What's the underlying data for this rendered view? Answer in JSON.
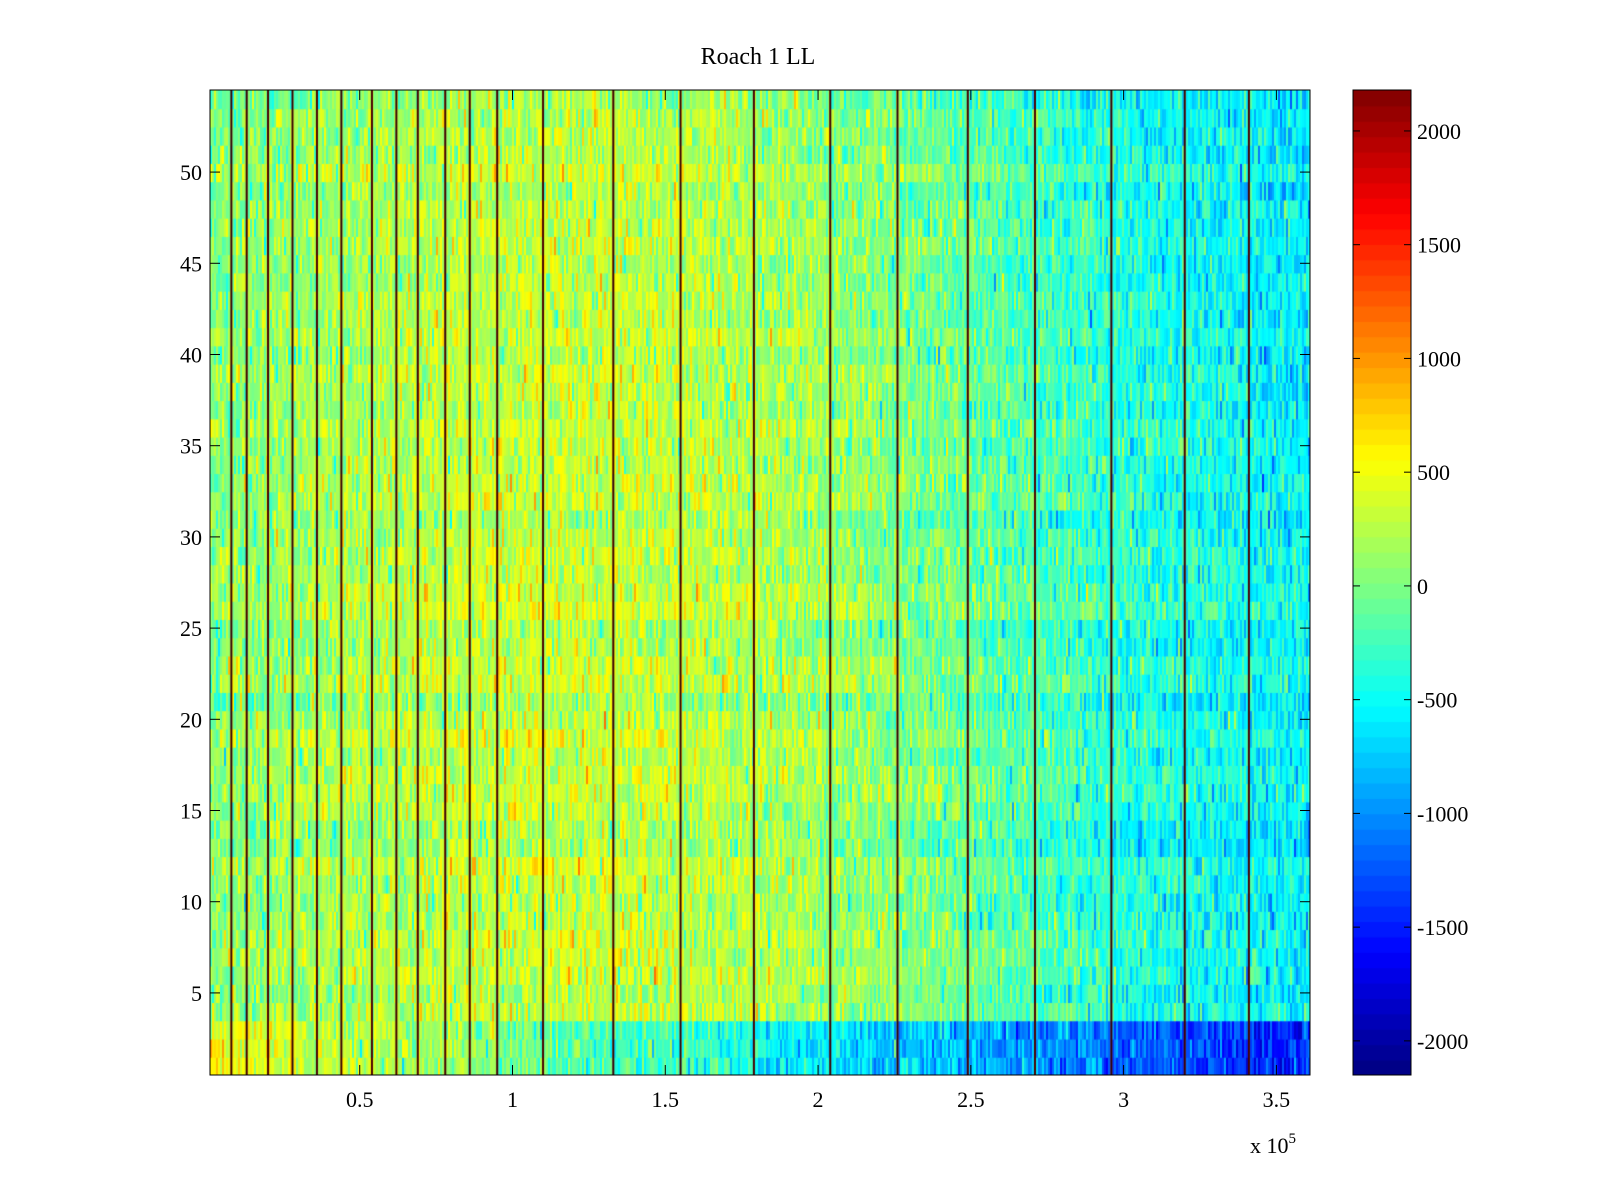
{
  "chart_data": {
    "type": "heatmap",
    "title": "Roach 1 LL",
    "xlabel": "",
    "ylabel": "",
    "x_multiplier_label": "x 10",
    "x_multiplier_exponent": "5",
    "xlim": [
      0.01,
      3.61
    ],
    "ylim": [
      0.5,
      54.5
    ],
    "xticks": [
      0.5,
      1,
      1.5,
      2,
      2.5,
      3,
      3.5
    ],
    "xtick_labels": [
      "0.5",
      "1",
      "1.5",
      "2",
      "2.5",
      "3",
      "3.5"
    ],
    "yticks": [
      5,
      10,
      15,
      20,
      25,
      30,
      35,
      40,
      45,
      50
    ],
    "ytick_labels": [
      "5",
      "10",
      "15",
      "20",
      "25",
      "30",
      "35",
      "40",
      "45",
      "50"
    ],
    "rows": 54,
    "colormap": "jet",
    "clim": [
      -2150,
      2180
    ],
    "colorbar_ticks": [
      2000,
      1500,
      1000,
      500,
      0,
      -500,
      -1000,
      -1500,
      -2000
    ],
    "colorbar_tick_labels": [
      "2000",
      "1500",
      "1000",
      "500",
      "0",
      "-500",
      "-1000",
      "-1500",
      "-2000"
    ],
    "stripe_positions": [
      0.08,
      0.13,
      0.2,
      0.28,
      0.36,
      0.44,
      0.54,
      0.62,
      0.69,
      0.78,
      0.86,
      0.95,
      1.1,
      1.33,
      1.55,
      1.79,
      2.04,
      2.26,
      2.49,
      2.71,
      2.96,
      3.2,
      3.41
    ],
    "value_trend": [
      {
        "x": 0.01,
        "mean": 50
      },
      {
        "x": 0.3,
        "mean": 150
      },
      {
        "x": 0.8,
        "mean": 300
      },
      {
        "x": 1.3,
        "mean": 330
      },
      {
        "x": 1.8,
        "mean": 230
      },
      {
        "x": 2.3,
        "mean": 30
      },
      {
        "x": 2.7,
        "mean": -200
      },
      {
        "x": 3.1,
        "mean": -400
      },
      {
        "x": 3.61,
        "mean": -560
      }
    ],
    "bottom_rows_note_values": {
      "rows_1_3_left_mean": 550,
      "rows_1_3_right_mean": -1500
    }
  }
}
